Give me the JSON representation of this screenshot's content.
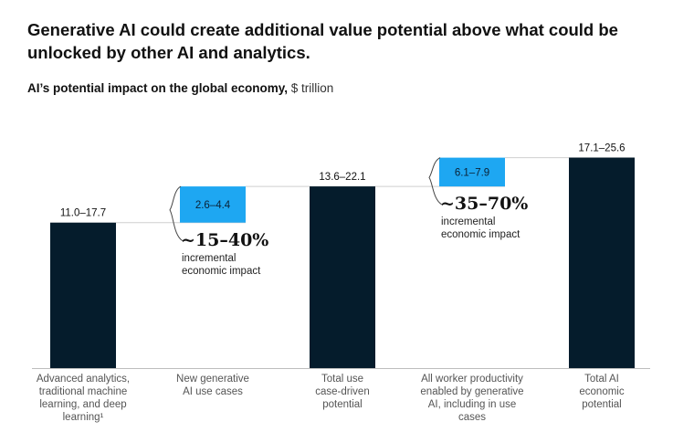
{
  "header": {
    "title": "Generative AI could create additional value potential above what could be unlocked by other AI and analytics.",
    "subtitle_bold": "AI’s potential impact on the global economy,",
    "subtitle_unit": "$ trillion"
  },
  "chart_data": {
    "type": "waterfall",
    "unit": "$ trillion",
    "ylim": [
      0,
      27
    ],
    "bars": [
      {
        "kind": "total",
        "label": "11.0–17.7",
        "low": 0,
        "high": 17.7,
        "color": "#051c2c",
        "category": "Advanced analytics,\ntraditional machine\nlearning, and deep\nlearning¹"
      },
      {
        "kind": "increment",
        "label": "2.6–4.4",
        "low": 17.7,
        "high": 22.1,
        "color": "#1ea7f2",
        "category": "New generative\nAI use cases"
      },
      {
        "kind": "total",
        "label": "13.6–22.1",
        "low": 0,
        "high": 22.1,
        "color": "#051c2c",
        "category": "Total use\ncase-driven\npotential"
      },
      {
        "kind": "increment",
        "label": "6.1–7.9",
        "low": 22.1,
        "high": 25.6,
        "color": "#1ea7f2",
        "category": "All worker productivity\nenabled by generative\nAI, including in use\ncases"
      },
      {
        "kind": "total",
        "label": "17.1–25.6",
        "low": 0,
        "high": 25.6,
        "color": "#051c2c",
        "category": "Total AI\neconomic\npotential"
      }
    ],
    "annotations": [
      {
        "bar": 1,
        "value": "~15–40%",
        "text": "incremental\neconomic impact"
      },
      {
        "bar": 3,
        "value": "~35–70%",
        "text": "incremental\neconomic impact"
      }
    ]
  }
}
